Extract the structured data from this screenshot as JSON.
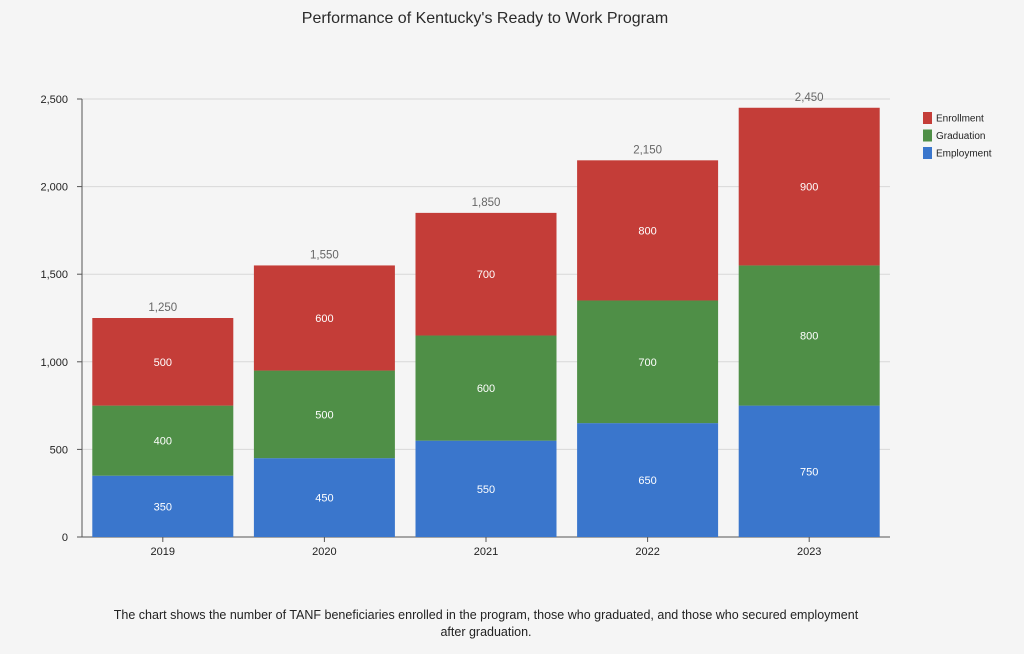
{
  "chart_data": {
    "type": "bar",
    "stacked": true,
    "title": "Performance of Kentucky's Ready to Work Program",
    "caption": "The chart shows the number of TANF beneficiaries enrolled in the program, those who graduated, and those who secured employment after graduation.",
    "categories": [
      "2019",
      "2020",
      "2021",
      "2022",
      "2023"
    ],
    "series": [
      {
        "name": "Employment",
        "color": "#3a76cc",
        "values": [
          350,
          450,
          550,
          650,
          750
        ]
      },
      {
        "name": "Graduation",
        "color": "#4f8f47",
        "values": [
          400,
          500,
          600,
          700,
          800
        ]
      },
      {
        "name": "Enrollment",
        "color": "#c43d38",
        "values": [
          500,
          600,
          700,
          800,
          900
        ]
      }
    ],
    "totals": [
      "1,250",
      "1,550",
      "1,850",
      "2,150",
      "2,450"
    ],
    "yticks": [
      "0",
      "500",
      "1,000",
      "1,500",
      "2,000",
      "2,500"
    ],
    "ylim": [
      0,
      2500
    ],
    "grid": true,
    "legend": "top-right",
    "legend_order": [
      "Enrollment",
      "Graduation",
      "Employment"
    ]
  }
}
